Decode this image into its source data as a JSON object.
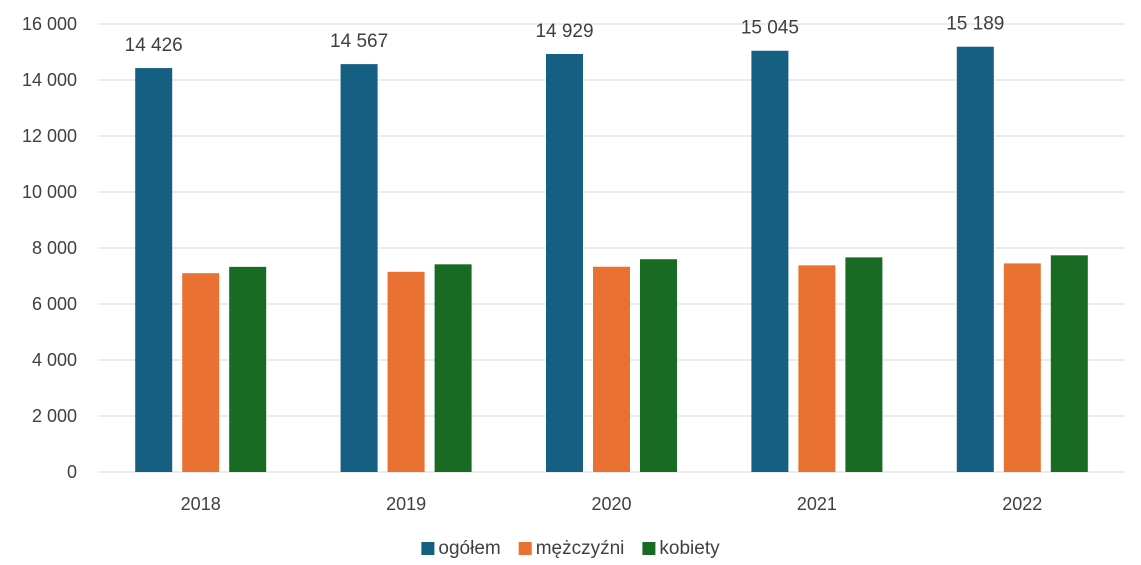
{
  "chart_data": {
    "type": "bar",
    "categories": [
      "2018",
      "2019",
      "2020",
      "2021",
      "2022"
    ],
    "series": [
      {
        "name": "ogółem",
        "color": "#156082",
        "values": [
          14426,
          14567,
          14929,
          15045,
          15189
        ]
      },
      {
        "name": "mężczyźni",
        "color": "#E97132",
        "values": [
          7100,
          7150,
          7330,
          7380,
          7450
        ]
      },
      {
        "name": "kobiety",
        "color": "#196B24",
        "values": [
          7326,
          7417,
          7599,
          7665,
          7739
        ]
      }
    ],
    "data_labels": {
      "series_index": 0,
      "texts": [
        "14 426",
        "14 567",
        "14 929",
        "15 045",
        "15 189"
      ]
    },
    "y_ticks": [
      0,
      2000,
      4000,
      6000,
      8000,
      10000,
      12000,
      14000,
      16000
    ],
    "y_tick_labels": [
      "0",
      "2 000",
      "4 000",
      "6 000",
      "8 000",
      "10 000",
      "12 000",
      "14 000",
      "16 000"
    ],
    "ylim": [
      0,
      16000
    ],
    "grid": true,
    "legend_position": "bottom-center",
    "title": "",
    "xlabel": "",
    "ylabel": ""
  }
}
